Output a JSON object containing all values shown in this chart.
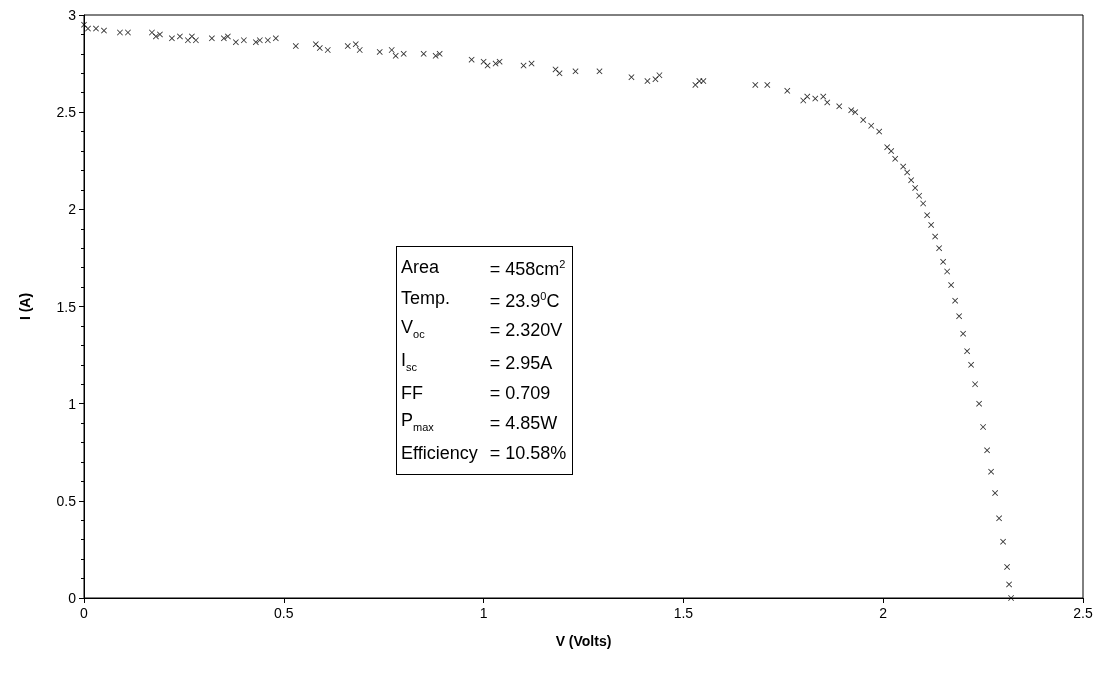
{
  "chart_data": {
    "type": "scatter",
    "xlabel": "V (Volts)",
    "ylabel": "I (A)",
    "xlim": [
      0,
      2.5
    ],
    "xticks": [
      0,
      0.5,
      1,
      1.5,
      2,
      2.5
    ],
    "ylim": [
      0,
      3
    ],
    "yticks": [
      0,
      0.5,
      1,
      1.5,
      2,
      2.5,
      3
    ],
    "grid": false,
    "marker": "cross",
    "series": [
      {
        "color": "#000000",
        "x": [
          0,
          0.01,
          0.03,
          0.05,
          0.09,
          0.11,
          0.17,
          0.18,
          0.19,
          0.22,
          0.24,
          0.26,
          0.27,
          0.28,
          0.32,
          0.35,
          0.36,
          0.38,
          0.4,
          0.43,
          0.44,
          0.46,
          0.48,
          0.53,
          0.58,
          0.59,
          0.61,
          0.66,
          0.68,
          0.69,
          0.74,
          0.77,
          0.78,
          0.8,
          0.85,
          0.88,
          0.89,
          0.97,
          1,
          1.01,
          1.03,
          1.04,
          1.1,
          1.12,
          1.18,
          1.19,
          1.23,
          1.29,
          1.37,
          1.41,
          1.43,
          1.44,
          1.53,
          1.54,
          1.55,
          1.68,
          1.71,
          1.76,
          1.8,
          1.81,
          1.83,
          1.85,
          1.86,
          1.89,
          1.92,
          1.93,
          1.95,
          1.97,
          1.99,
          2.01,
          2.02,
          2.03,
          2.05,
          2.06,
          2.07,
          2.08,
          2.09,
          2.1,
          2.11,
          2.12,
          2.13,
          2.14,
          2.15,
          2.16,
          2.17,
          2.18,
          2.19,
          2.2,
          2.21,
          2.22,
          2.23,
          2.24,
          2.25,
          2.26,
          2.27,
          2.28,
          2.29,
          2.3,
          2.31,
          2.315,
          2.32
        ],
        "values": [
          2.95,
          2.93,
          2.93,
          2.92,
          2.91,
          2.91,
          2.91,
          2.89,
          2.9,
          2.88,
          2.89,
          2.87,
          2.89,
          2.87,
          2.88,
          2.88,
          2.89,
          2.86,
          2.87,
          2.86,
          2.87,
          2.87,
          2.88,
          2.84,
          2.85,
          2.83,
          2.82,
          2.84,
          2.85,
          2.82,
          2.81,
          2.82,
          2.79,
          2.8,
          2.8,
          2.79,
          2.8,
          2.77,
          2.76,
          2.74,
          2.75,
          2.76,
          2.74,
          2.75,
          2.72,
          2.7,
          2.71,
          2.71,
          2.68,
          2.66,
          2.67,
          2.69,
          2.64,
          2.66,
          2.66,
          2.64,
          2.64,
          2.61,
          2.56,
          2.58,
          2.57,
          2.58,
          2.55,
          2.53,
          2.51,
          2.5,
          2.46,
          2.43,
          2.4,
          2.32,
          2.3,
          2.26,
          2.22,
          2.19,
          2.15,
          2.11,
          2.07,
          2.03,
          1.97,
          1.92,
          1.86,
          1.8,
          1.73,
          1.68,
          1.61,
          1.53,
          1.45,
          1.36,
          1.27,
          1.2,
          1.1,
          1,
          0.88,
          0.76,
          0.65,
          0.54,
          0.41,
          0.29,
          0.16,
          0.07,
          0
        ]
      }
    ],
    "annotations": [
      "Area = 458cm$^{2}$",
      "Temp. = 23.9$^{0}$C",
      "V$_{oc}$ = 2.320V",
      "I$_{sc}$ = 2.95A",
      "FF = 0.709",
      "P$_{max}$ = 4.85W",
      "Efficiency = 10.58%"
    ]
  }
}
